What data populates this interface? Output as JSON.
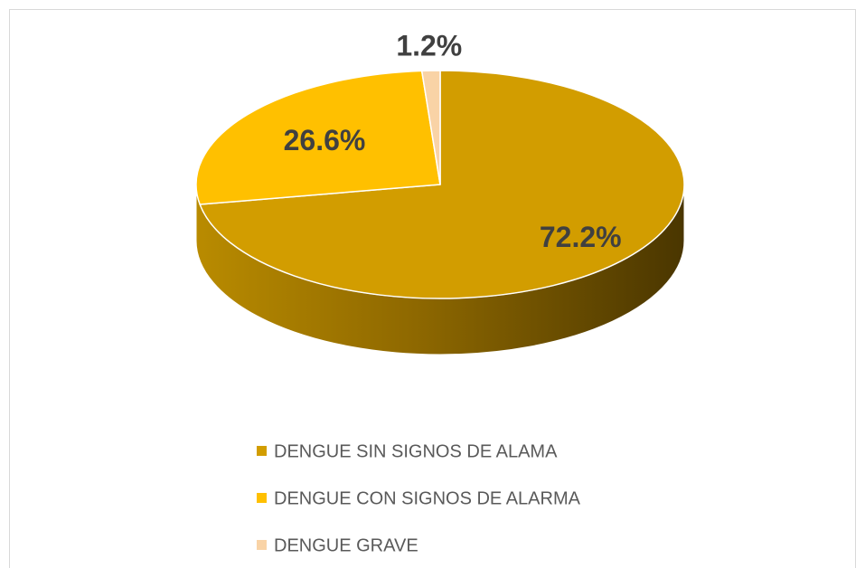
{
  "chart_data": {
    "type": "pie",
    "categories": [
      "DENGUE SIN SIGNOS DE ALAMA",
      "DENGUE CON SIGNOS DE ALARMA",
      "DENGUE GRAVE"
    ],
    "values": [
      72.2,
      26.6,
      1.2
    ],
    "value_labels": [
      "72.2%",
      "26.6%",
      "1.2%"
    ],
    "colors": [
      "#D29D00",
      "#FFC000",
      "#F9D3A6"
    ],
    "legend": "bottom"
  }
}
